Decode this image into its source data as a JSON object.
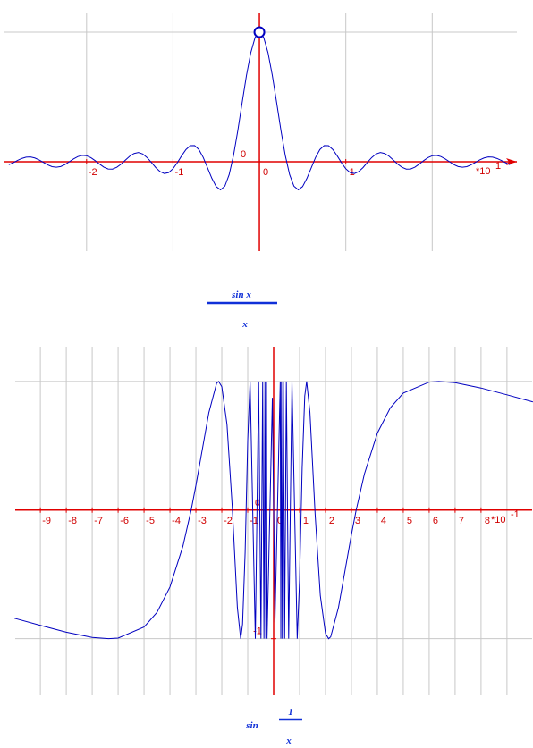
{
  "chart_data": [
    {
      "type": "line",
      "color": "#0000c0",
      "x": [
        -2.9,
        -2.85,
        -2.8,
        -2.75,
        -2.7,
        -2.65,
        -2.6,
        -2.55,
        -2.5,
        -2.45,
        -2.4,
        -2.35,
        -2.3,
        -2.25,
        -2.2,
        -2.15,
        -2.1,
        -2.05,
        -2.0,
        -1.95,
        -1.9,
        -1.85,
        -1.8,
        -1.75,
        -1.7,
        -1.65,
        -1.6,
        -1.55,
        -1.5,
        -1.45,
        -1.4,
        -1.35,
        -1.3,
        -1.25,
        -1.2,
        -1.15,
        -1.1,
        -1.05,
        -1.0,
        -0.95,
        -0.9,
        -0.85,
        -0.8,
        -0.75,
        -0.7,
        -0.65,
        -0.6,
        -0.55,
        -0.5,
        -0.45,
        -0.4,
        -0.35,
        -0.3,
        -0.25,
        -0.2,
        -0.15,
        -0.1,
        -0.05,
        0,
        0.05,
        0.1,
        0.15,
        0.2,
        0.25,
        0.3,
        0.35,
        0.4,
        0.45,
        0.5,
        0.55,
        0.6,
        0.65,
        0.7,
        0.75,
        0.8,
        0.85,
        0.9,
        0.95,
        1.0,
        1.05,
        1.1,
        1.15,
        1.2,
        1.25,
        1.3,
        1.35,
        1.4,
        1.45,
        1.5,
        1.55,
        1.6,
        1.65,
        1.7,
        1.75,
        1.8,
        1.85,
        1.9,
        1.95,
        2.0,
        2.05,
        2.1,
        2.15,
        2.2,
        2.25,
        2.3,
        2.35,
        2.4,
        2.45,
        2.5,
        2.55,
        2.6,
        2.65,
        2.7,
        2.75,
        2.8,
        2.85,
        2.9
      ],
      "values": [
        -0.023,
        -0.008,
        0.01,
        0.025,
        0.035,
        0.037,
        0.029,
        0.014,
        -0.005,
        -0.024,
        -0.038,
        -0.042,
        -0.037,
        -0.022,
        0,
        0.022,
        0.04,
        0.049,
        0.046,
        0.031,
        0.008,
        -0.018,
        -0.042,
        -0.056,
        -0.057,
        -0.043,
        -0.018,
        0.013,
        0.043,
        0.064,
        0.071,
        0.06,
        0.032,
        -0.005,
        -0.045,
        -0.076,
        -0.091,
        -0.084,
        -0.054,
        -0.008,
        0.046,
        0.094,
        0.124,
        0.125,
        0.094,
        0.033,
        -0.047,
        -0.128,
        -0.192,
        -0.217,
        -0.189,
        -0.1,
        0.047,
        0.239,
        0.455,
        0.665,
        0.841,
        0.959,
        1,
        0.959,
        0.841,
        0.665,
        0.455,
        0.239,
        0.047,
        -0.1,
        -0.189,
        -0.217,
        -0.192,
        -0.128,
        -0.047,
        0.033,
        0.094,
        0.125,
        0.124,
        0.094,
        0.046,
        -0.008,
        -0.054,
        -0.084,
        -0.091,
        -0.076,
        -0.045,
        -0.005,
        0.032,
        0.06,
        0.071,
        0.064,
        0.043,
        0.013,
        -0.018,
        -0.043,
        -0.057,
        -0.056,
        -0.042,
        -0.018,
        0.008,
        0.031,
        0.046,
        0.049,
        0.04,
        0.022,
        0,
        -0.022,
        -0.037,
        -0.042,
        -0.038,
        -0.024,
        -0.005,
        0.014,
        0.029,
        0.037,
        0.035,
        0.025,
        0.01,
        -0.008,
        -0.023
      ],
      "open_point": [
        0,
        1
      ],
      "xlim": [
        -2.95,
        2.98
      ],
      "ylim": [
        -0.69,
        1.145
      ],
      "xticks": [
        -2,
        -1,
        0,
        1
      ],
      "yticks": [
        0
      ],
      "xgrid": [
        -2,
        -1,
        1,
        2
      ],
      "ygrid": [
        1
      ],
      "x_scale": "*10",
      "x_scale_exponent": "1",
      "formula": {
        "numerator": "sin x",
        "denominator": "x"
      }
    },
    {
      "type": "line",
      "color": "#0000c0",
      "x": [
        -10,
        -9,
        -8,
        -7,
        -6.37,
        -6,
        -5,
        -4.5,
        -4,
        -3.5,
        -3.18,
        -3,
        -2.5,
        -2.2,
        -2.12,
        -2,
        -1.8,
        -1.6,
        -1.4,
        -1.273,
        -1.2,
        -1.1,
        -1.0,
        -0.909,
        -0.707,
        -0.579,
        -0.49,
        -0.424,
        -0.374,
        -0.335,
        -0.303,
        -0.277,
        -0.255,
        -0.05,
        0.05,
        0.255,
        0.277,
        0.303,
        0.335,
        0.374,
        0.424,
        0.49,
        0.579,
        0.707,
        0.909,
        1.0,
        1.1,
        1.2,
        1.273,
        1.4,
        1.6,
        1.8,
        2,
        2.12,
        2.2,
        2.5,
        3,
        3.18,
        3.5,
        4,
        4.5,
        5,
        6,
        6.37,
        7,
        8,
        9,
        10
      ],
      "values": [
        -0.841,
        -0.896,
        -0.949,
        -0.99,
        -1,
        -0.995,
        -0.909,
        -0.795,
        -0.598,
        -0.28,
        0.003,
        0.191,
        0.757,
        0.986,
        1,
        0.959,
        0.665,
        0.033,
        -0.758,
        -1,
        -0.887,
        -0.327,
        0.544,
        1,
        -1,
        1,
        -1,
        1,
        -1,
        1,
        -1,
        1,
        -1,
        0.873,
        -0.873,
        1,
        -1,
        1,
        -1,
        1,
        -1,
        1,
        -1,
        1,
        -1,
        -0.544,
        0.327,
        0.887,
        1,
        0.758,
        -0.033,
        -0.665,
        -0.959,
        -1,
        -0.986,
        -0.757,
        -0.191,
        -0.003,
        0.28,
        0.598,
        0.795,
        0.909,
        0.995,
        1,
        0.99,
        0.949,
        0.896,
        0.841
      ],
      "xlim": [
        -9.97,
        9.97
      ],
      "ylim": [
        -1.44,
        1.27
      ],
      "xticks": [
        -9,
        -8,
        -7,
        -6,
        -5,
        -4,
        -3,
        -2,
        -1,
        0,
        1,
        2,
        3,
        4,
        5,
        6,
        7,
        8
      ],
      "yticks": [
        0,
        -1
      ],
      "xgrid": [
        -9,
        -8,
        -7,
        -6,
        -5,
        -4,
        -3,
        -2,
        -1,
        1,
        2,
        3,
        4,
        5,
        6,
        7,
        8,
        9
      ],
      "ygrid": [
        1,
        -1
      ],
      "x_scale": "*10",
      "x_scale_exponent": "-1",
      "formula": {
        "prefix": "sin",
        "numerator": "1",
        "denominator": "x"
      }
    }
  ]
}
